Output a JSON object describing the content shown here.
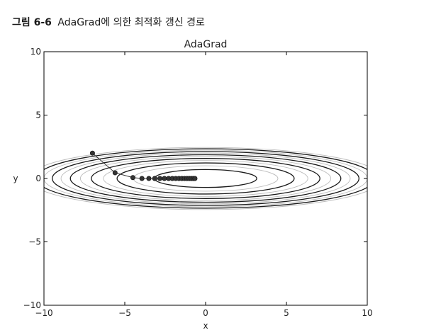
{
  "caption": {
    "number": "그림 6-6",
    "text": "AdaGrad에 의한 최적화 갱신 경로"
  },
  "chart_data": {
    "type": "line",
    "title": "AdaGrad",
    "xlabel": "x",
    "ylabel": "y",
    "xlim": [
      -10,
      10
    ],
    "ylim": [
      -10,
      10
    ],
    "xticks": [
      -10,
      -5,
      0,
      5,
      10
    ],
    "yticks": [
      -10,
      -5,
      0,
      5,
      10
    ],
    "xtick_labels": [
      "−10",
      "−5",
      "0",
      "5",
      "10"
    ],
    "ytick_labels": [
      "−10",
      "−5",
      "0",
      "5",
      "10"
    ],
    "grid": false,
    "function": "f(x, y) = x^2/20 + y^2",
    "contour_levels": [
      0.5,
      1.0,
      1.5,
      2.0,
      2.5,
      3.0,
      3.5,
      4.0,
      4.5,
      5.0,
      5.5,
      6.0
    ],
    "contour_colors": {
      "dark": "#1a1a1a",
      "light": "#bdbdbd"
    },
    "path_color": "#333333",
    "series": [
      {
        "x": [
          -7.0,
          -5.6,
          -4.5,
          -3.94,
          -3.51,
          -3.15,
          -2.83,
          -2.55,
          -2.29,
          -2.06,
          -1.85,
          -1.65,
          -1.47,
          -1.31,
          -1.16,
          -1.02,
          -0.89,
          -0.77,
          -0.66
        ],
        "y": [
          2.0,
          0.45,
          0.07,
          0.0,
          0.0,
          0.0,
          0.0,
          0.0,
          0.0,
          0.0,
          0.0,
          0.0,
          0.0,
          0.0,
          0.0,
          0.0,
          0.0,
          0.0,
          0.0
        ]
      }
    ]
  }
}
